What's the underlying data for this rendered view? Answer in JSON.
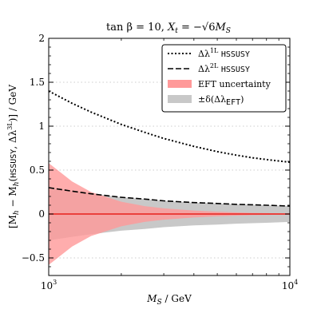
{
  "chart_data": {
    "type": "line",
    "title": "tan β = 10, X_t = −√6 M_S",
    "title_parts": {
      "a": "tan β = 10, ",
      "b": "X",
      "b_sub": "t",
      "c": " = −√6",
      "d": "M",
      "d_sub": "S"
    },
    "xlabel": "M_S / GeV",
    "xlabel_parts": {
      "a": "M",
      "a_sub": "S",
      "b": " / GeV"
    },
    "ylabel": "[M_h − M_h(HSSUSY, Δλ^3L)] / GeV",
    "ylabel_parts": {
      "a": "[M",
      "a_sub": "h",
      "b": " − M",
      "b_sub": "h",
      "c": "(",
      "d": "HSSUSY",
      "e": ", Δλ",
      "e_sup": "3L",
      "f": ")] / GeV"
    },
    "x_scale": "log",
    "xlim": [
      1000,
      10000
    ],
    "ylim": [
      -0.7,
      2.0
    ],
    "x_major_ticks": [
      {
        "value": 1000,
        "base": "10",
        "exp": "3"
      },
      {
        "value": 10000,
        "base": "10",
        "exp": "4"
      }
    ],
    "y_ticks": [
      {
        "value": -0.5,
        "label": "−0.5"
      },
      {
        "value": 0,
        "label": "0"
      },
      {
        "value": 0.5,
        "label": "0.5"
      },
      {
        "value": 1,
        "label": "1"
      },
      {
        "value": 1.5,
        "label": "1.5"
      },
      {
        "value": 2,
        "label": "2"
      }
    ],
    "grid": true,
    "legend_position": "top-right",
    "x": [
      1000,
      1250,
      1500,
      2000,
      2500,
      3000,
      4000,
      5000,
      6000,
      7000,
      8000,
      10000
    ],
    "series": [
      {
        "name": "Δλ^1L HSSUSY",
        "label_parts": {
          "a": "Δλ",
          "sup": "1L",
          "b": "HSSUSY"
        },
        "style": "dotted",
        "color": "#000000",
        "values": [
          1.4,
          1.26,
          1.16,
          1.02,
          0.93,
          0.86,
          0.77,
          0.71,
          0.67,
          0.64,
          0.62,
          0.59
        ]
      },
      {
        "name": "Δλ^2L HSSUSY",
        "label_parts": {
          "a": "Δλ",
          "sup": "2L",
          "b": "HSSUSY"
        },
        "style": "dashed",
        "color": "#000000",
        "values": [
          0.3,
          0.26,
          0.23,
          0.19,
          0.17,
          0.15,
          0.13,
          0.12,
          0.11,
          0.105,
          0.1,
          0.09
        ]
      },
      {
        "name": "reference",
        "style": "solid",
        "color": "#e8201a",
        "values": [
          0,
          0,
          0,
          0,
          0,
          0,
          0,
          0,
          0,
          0,
          0,
          0
        ]
      }
    ],
    "bands": [
      {
        "name": "±δ(Δλ_EFT)",
        "label_parts": {
          "a": "±δ(Δλ",
          "sub": "EFT",
          "b": ")"
        },
        "color": "#c8c8c8",
        "upper": [
          0.3,
          0.26,
          0.23,
          0.19,
          0.17,
          0.15,
          0.13,
          0.12,
          0.11,
          0.105,
          0.1,
          0.09
        ],
        "lower": [
          -0.3,
          -0.26,
          -0.23,
          -0.19,
          -0.17,
          -0.15,
          -0.13,
          -0.12,
          -0.11,
          -0.105,
          -0.1,
          -0.09
        ]
      },
      {
        "name": "EFT uncertainty",
        "color": "#ff9999",
        "upper": [
          0.58,
          0.37,
          0.25,
          0.14,
          0.09,
          0.065,
          0.04,
          0.026,
          0.018,
          0.013,
          0.01,
          0.006
        ],
        "lower": [
          -0.58,
          -0.37,
          -0.25,
          -0.14,
          -0.09,
          -0.065,
          -0.04,
          -0.026,
          -0.018,
          -0.013,
          -0.01,
          -0.006
        ]
      }
    ]
  }
}
